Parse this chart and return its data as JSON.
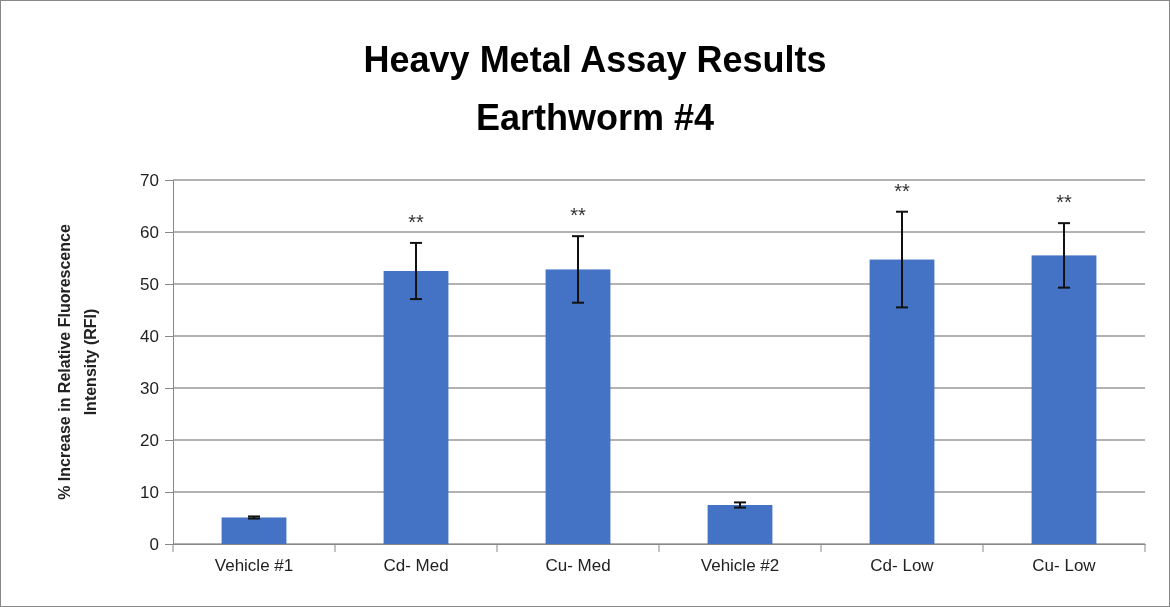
{
  "chart_data": {
    "type": "bar",
    "title": "Heavy Metal Assay Results\nEarthworm #4",
    "ylabel": "% Increase in Relative Fluorescence\nIntensity (RFI)",
    "categories": [
      "Vehicle #1",
      "Cd- Med",
      "Cu- Med",
      "Vehicle #2",
      "Cd- Low",
      "Cu- Low"
    ],
    "values": [
      5.1,
      52.5,
      52.8,
      7.5,
      54.7,
      55.5
    ],
    "errors": [
      0.2,
      5.4,
      6.4,
      0.5,
      9.2,
      6.2
    ],
    "color": "#4472c4",
    "ylim": [
      0,
      70
    ],
    "yticks": [
      0,
      10,
      20,
      30,
      40,
      50,
      60,
      70
    ],
    "grid": "y",
    "annotations": [
      "**",
      "**",
      "**",
      "**"
    ]
  }
}
